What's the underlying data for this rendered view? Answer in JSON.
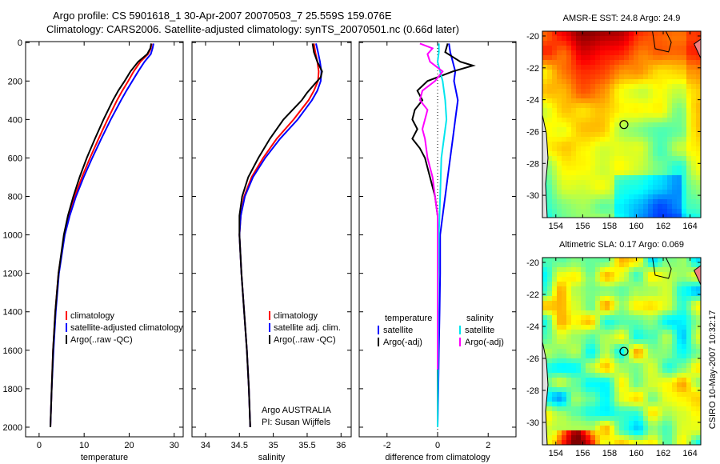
{
  "figure": {
    "title_line1": "Argo profile: CS 5901618_1 30-Apr-2007 20070503_7 25.559S 159.076E",
    "title_line2": "Climatology: CARS2006. Satellite-adjusted climatology: synTS_20070501.nc (0.66d later)",
    "side_text": "CSIRO 10-May-2007 10:32:17",
    "credit_line1": "Argo AUSTRALIA",
    "credit_line2": "PI: Susan Wijffels"
  },
  "colors": {
    "climatology": "#ff0000",
    "satellite": "#0000ff",
    "argo": "#000000",
    "salinity_satellite": "#00e5ee",
    "salinity_argo": "#ff00ff"
  },
  "chart_data": [
    {
      "id": "temperature",
      "type": "line",
      "xlabel": "temperature",
      "xlim": [
        -3,
        32
      ],
      "xticks": [
        0,
        10,
        20,
        30
      ],
      "ylim": [
        2050,
        0
      ],
      "yticks": [
        0,
        200,
        400,
        600,
        800,
        1000,
        1200,
        1400,
        1600,
        1800,
        2000
      ],
      "legend": [
        "climatology",
        "satellite-adjusted climatology",
        "Argo(..raw -QC)"
      ],
      "series": [
        {
          "name": "climatology",
          "color": "#ff0000",
          "depth": [
            5,
            30,
            60,
            100,
            150,
            200,
            250,
            300,
            400,
            500,
            600,
            700,
            800,
            900,
            1000,
            1200,
            1400,
            1600,
            1800,
            2000
          ],
          "values": [
            25.0,
            24.8,
            24.2,
            22.5,
            21.0,
            19.8,
            18.5,
            17.3,
            15.2,
            13.2,
            11.3,
            9.5,
            7.9,
            6.6,
            5.6,
            4.3,
            3.6,
            3.1,
            2.8,
            2.5
          ]
        },
        {
          "name": "satellite-adjusted climatology",
          "color": "#0000ff",
          "depth": [
            5,
            30,
            60,
            100,
            150,
            200,
            250,
            300,
            400,
            500,
            600,
            700,
            800,
            900,
            1000,
            1200,
            1400,
            1600,
            1800,
            2000
          ],
          "values": [
            25.4,
            25.2,
            24.8,
            23.4,
            22.0,
            20.7,
            19.4,
            18.2,
            15.9,
            13.8,
            11.8,
            9.9,
            8.2,
            6.8,
            5.7,
            4.4,
            3.7,
            3.2,
            2.8,
            2.5
          ]
        },
        {
          "name": "Argo(..raw -QC)",
          "color": "#000000",
          "depth": [
            5,
            30,
            60,
            100,
            150,
            200,
            250,
            300,
            400,
            500,
            600,
            700,
            800,
            900,
            1000,
            1200,
            1400,
            1600,
            1800,
            2000
          ],
          "values": [
            24.9,
            24.7,
            24.0,
            22.0,
            20.3,
            19.0,
            17.6,
            16.4,
            14.3,
            12.4,
            10.6,
            9.0,
            7.6,
            6.4,
            5.5,
            4.3,
            3.6,
            3.1,
            2.8,
            2.5
          ]
        }
      ]
    },
    {
      "id": "salinity",
      "type": "line",
      "xlabel": "salinity",
      "xlim": [
        33.8,
        36.15
      ],
      "xticks": [
        34,
        34.5,
        35,
        35.5,
        36
      ],
      "ylim": [
        2050,
        0
      ],
      "legend": [
        "climatology",
        "satellite adj. clim.",
        "Argo(..raw -QC)"
      ],
      "series": [
        {
          "name": "climatology",
          "color": "#ff0000",
          "depth": [
            5,
            50,
            100,
            150,
            200,
            250,
            300,
            400,
            500,
            600,
            700,
            800,
            900,
            1000,
            1200,
            1400,
            1600,
            1800,
            2000
          ],
          "values": [
            35.6,
            35.62,
            35.65,
            35.67,
            35.66,
            35.6,
            35.52,
            35.3,
            35.05,
            34.85,
            34.68,
            34.57,
            34.52,
            34.5,
            34.53,
            34.57,
            34.61,
            34.64,
            34.66
          ]
        },
        {
          "name": "satellite adj. clim.",
          "color": "#0000ff",
          "depth": [
            5,
            50,
            100,
            150,
            200,
            250,
            300,
            400,
            500,
            600,
            700,
            800,
            900,
            1000,
            1200,
            1400,
            1600,
            1800,
            2000
          ],
          "values": [
            35.63,
            35.66,
            35.69,
            35.71,
            35.7,
            35.65,
            35.57,
            35.36,
            35.1,
            34.88,
            34.7,
            34.58,
            34.52,
            34.5,
            34.53,
            34.57,
            34.61,
            34.64,
            34.66
          ]
        },
        {
          "name": "Argo(..raw -QC)",
          "color": "#000000",
          "depth": [
            5,
            50,
            100,
            150,
            180,
            220,
            260,
            300,
            400,
            500,
            600,
            700,
            800,
            900,
            1000,
            1200,
            1400,
            1600,
            1800,
            2000
          ],
          "values": [
            35.58,
            35.6,
            35.65,
            35.72,
            35.7,
            35.6,
            35.5,
            35.42,
            35.15,
            34.95,
            34.78,
            34.63,
            34.54,
            34.5,
            34.5,
            34.53,
            34.57,
            34.61,
            34.64,
            34.66
          ]
        }
      ]
    },
    {
      "id": "difference",
      "type": "line",
      "xlabel": "difference from climatology",
      "xlim": [
        -3.1,
        3.1
      ],
      "xticks": [
        -2,
        0,
        2
      ],
      "ylim": [
        2050,
        0
      ],
      "legend_headers": [
        "temperature",
        "salinity"
      ],
      "legend": [
        "satellite",
        "Argo(-adj)",
        "satellite",
        "Argo(-adj)"
      ],
      "series": [
        {
          "name": "temperature satellite",
          "color": "#0000ff",
          "depth": [
            5,
            50,
            100,
            150,
            200,
            300,
            400,
            500,
            600,
            700,
            800,
            900,
            1000,
            1200,
            1400,
            1600,
            1800,
            2000
          ],
          "values": [
            0.45,
            0.5,
            0.6,
            0.7,
            0.65,
            0.8,
            0.7,
            0.6,
            0.5,
            0.4,
            0.3,
            0.2,
            0.1,
            0.1,
            0.08,
            0.05,
            0.03,
            0.0
          ]
        },
        {
          "name": "temperature Argo(-adj)",
          "color": "#000000",
          "depth": [
            5,
            50,
            100,
            120,
            150,
            200,
            250,
            300,
            350,
            400,
            450,
            500,
            550,
            600,
            700,
            800,
            900,
            1000,
            1200,
            1400,
            1600,
            1800,
            2000
          ],
          "values": [
            0.4,
            0.3,
            0.9,
            1.4,
            0.6,
            -0.4,
            -0.8,
            -0.6,
            -0.9,
            -1.0,
            -0.8,
            -1.0,
            -0.7,
            -0.5,
            -0.3,
            -0.1,
            0.0,
            0.0,
            0.0,
            0.0,
            0.0,
            0.0,
            0.0
          ]
        },
        {
          "name": "salinity satellite",
          "color": "#00e5ee",
          "depth": [
            5,
            50,
            100,
            200,
            300,
            400,
            500,
            600,
            800,
            1000,
            1200,
            1400,
            1600,
            1800,
            2000
          ],
          "values": [
            0.05,
            0.05,
            0.0,
            0.2,
            0.3,
            0.35,
            0.25,
            0.15,
            0.1,
            0.05,
            0.03,
            0.02,
            0.02,
            0.01,
            0.0
          ]
        },
        {
          "name": "salinity Argo(-adj)",
          "color": "#ff00ff",
          "depth": [
            5,
            30,
            60,
            100,
            150,
            200,
            250,
            300,
            350,
            400,
            450,
            500,
            600,
            700,
            800,
            900,
            1000,
            1200,
            1400,
            1600,
            1700
          ],
          "values": [
            -0.7,
            -0.2,
            -0.4,
            -0.3,
            0.2,
            -0.1,
            -0.6,
            -0.7,
            -0.4,
            -0.5,
            -0.6,
            -0.5,
            -0.4,
            -0.2,
            -0.1,
            0.0,
            0.0,
            0.0,
            0.0,
            0.0,
            0.0
          ]
        }
      ]
    }
  ],
  "maps": [
    {
      "title": "AMSR-E SST: 24.8 Argo: 24.9",
      "kind": "sst",
      "xticks": [
        154,
        156,
        158,
        160,
        162,
        164
      ],
      "yticks": [
        -20,
        -22,
        -24,
        -26,
        -28,
        -30
      ],
      "xlim": [
        153.0,
        164.8
      ],
      "ylim": [
        -31.4,
        -19.7
      ],
      "float": [
        159.076,
        -25.559
      ]
    },
    {
      "title": "Altimetric SLA: 0.17 Argo: 0.069",
      "kind": "sla",
      "xticks": [
        154,
        156,
        158,
        160,
        162,
        164
      ],
      "yticks": [
        -20,
        -22,
        -24,
        -26,
        -28,
        -30
      ],
      "xlim": [
        153.0,
        164.8
      ],
      "ylim": [
        -31.4,
        -19.7
      ],
      "float": [
        159.076,
        -25.559
      ]
    }
  ]
}
